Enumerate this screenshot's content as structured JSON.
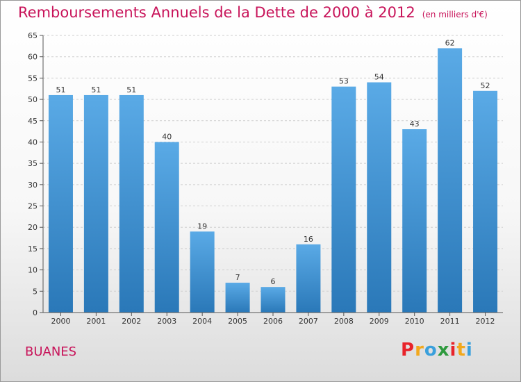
{
  "header": {
    "title": "Remboursements Annuels de la Dette de 2000 à 2012",
    "unit": "(en milliers d'€)"
  },
  "footer": {
    "town": "BUANES",
    "brand": [
      "P",
      "r",
      "o",
      "x",
      "i",
      "t",
      "i"
    ],
    "brand_colors": [
      "#e8232a",
      "#f2a81d",
      "#3aa0dc",
      "#2e9a3e",
      "#e8232a",
      "#f2a81d",
      "#3aa0dc"
    ]
  },
  "chart_data": {
    "type": "bar",
    "title": "Remboursements Annuels de la Dette de 2000 à 2012",
    "categories": [
      "2000",
      "2001",
      "2002",
      "2003",
      "2004",
      "2005",
      "2006",
      "2007",
      "2008",
      "2009",
      "2010",
      "2011",
      "2012"
    ],
    "values": [
      51,
      51,
      51,
      40,
      19,
      7,
      6,
      16,
      53,
      54,
      43,
      62,
      52
    ],
    "ylim": [
      0,
      65
    ],
    "yticks": [
      0,
      5,
      10,
      15,
      20,
      25,
      30,
      35,
      40,
      45,
      50,
      55,
      60,
      65
    ],
    "grid": true,
    "bar_color_top": "#5aaae6",
    "bar_color_bottom": "#2a78b8"
  }
}
